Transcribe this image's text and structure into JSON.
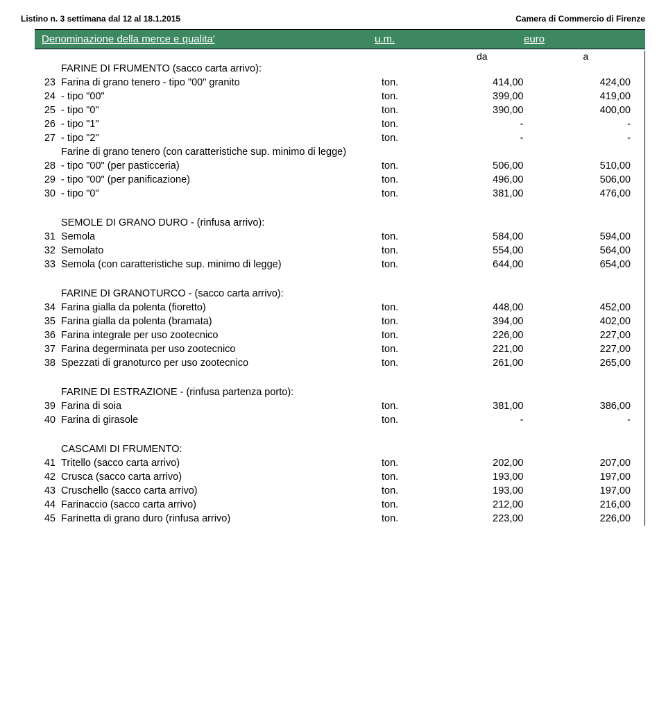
{
  "header": {
    "left": "Listino n. 3 settimana dal 12 al 18.1.2015",
    "right": "Camera di Commercio di Firenze"
  },
  "banner": {
    "desc": "Denominazione della merce e qualita'",
    "um": "u.m.",
    "euro": "euro"
  },
  "sub": {
    "da": "da",
    "a": "a"
  },
  "sections": [
    {
      "title": "FARINE DI FRUMENTO (sacco carta arrivo):",
      "rows": [
        {
          "n": "23",
          "d": "Farina di grano tenero - tipo \"00\" granito",
          "u": "ton.",
          "v1": "414,00",
          "v2": "424,00"
        },
        {
          "n": "24",
          "d": " - tipo \"00\"",
          "u": "ton.",
          "v1": "399,00",
          "v2": "419,00"
        },
        {
          "n": "25",
          "d": " - tipo \"0\"",
          "u": "ton.",
          "v1": "390,00",
          "v2": "400,00"
        },
        {
          "n": "26",
          "d": " - tipo \"1\"",
          "u": "ton.",
          "v1": "-",
          "v2": "-"
        },
        {
          "n": "27",
          "d": " - tipo \"2\"",
          "u": "ton.",
          "v1": "-",
          "v2": "-"
        }
      ],
      "subtitle": "Farine di grano tenero (con caratteristiche sup. minimo di legge)",
      "rows2": [
        {
          "n": "28",
          "d": " - tipo \"00\" (per pasticceria)",
          "u": "ton.",
          "v1": "506,00",
          "v2": "510,00"
        },
        {
          "n": "29",
          "d": " - tipo \"00\" (per panificazione)",
          "u": "ton.",
          "v1": "496,00",
          "v2": "506,00"
        },
        {
          "n": "30",
          "d": " - tipo \"0\"",
          "u": "ton.",
          "v1": "381,00",
          "v2": "476,00"
        }
      ]
    },
    {
      "title": "SEMOLE DI GRANO DURO - (rinfusa arrivo):",
      "rows": [
        {
          "n": "31",
          "d": "Semola",
          "u": "ton.",
          "v1": "584,00",
          "v2": "594,00"
        },
        {
          "n": "32",
          "d": "Semolato",
          "u": "ton.",
          "v1": "554,00",
          "v2": "564,00"
        },
        {
          "n": "33",
          "d": "Semola (con caratteristiche sup. minimo di legge)",
          "u": "ton.",
          "v1": "644,00",
          "v2": "654,00"
        }
      ]
    },
    {
      "title": "FARINE DI GRANOTURCO - (sacco carta arrivo):",
      "rows": [
        {
          "n": "34",
          "d": "Farina gialla da polenta (fioretto)",
          "u": "ton.",
          "v1": "448,00",
          "v2": "452,00"
        },
        {
          "n": "35",
          "d": "Farina gialla da polenta (bramata)",
          "u": "ton.",
          "v1": "394,00",
          "v2": "402,00"
        },
        {
          "n": "36",
          "d": "Farina integrale per uso zootecnico",
          "u": "ton.",
          "v1": "226,00",
          "v2": "227,00"
        },
        {
          "n": "37",
          "d": "Farina degerminata per uso zootecnico",
          "u": "ton.",
          "v1": "221,00",
          "v2": "227,00"
        },
        {
          "n": "38",
          "d": "Spezzati di granoturco per uso zootecnico",
          "u": "ton.",
          "v1": "261,00",
          "v2": "265,00"
        }
      ]
    },
    {
      "title": "FARINE DI ESTRAZIONE - (rinfusa partenza porto):",
      "rows": [
        {
          "n": "39",
          "d": "Farina di soia",
          "u": "ton.",
          "v1": "381,00",
          "v2": "386,00"
        },
        {
          "n": "40",
          "d": "Farina di girasole",
          "u": "ton.",
          "v1": "-",
          "v2": "-"
        }
      ]
    },
    {
      "title": "CASCAMI DI FRUMENTO:",
      "rows": [
        {
          "n": "41",
          "d": "Tritello (sacco carta arrivo)",
          "u": "ton.",
          "v1": "202,00",
          "v2": "207,00"
        },
        {
          "n": "42",
          "d": "Crusca (sacco carta arrivo)",
          "u": "ton.",
          "v1": "193,00",
          "v2": "197,00"
        },
        {
          "n": "43",
          "d": "Cruschello (sacco carta arrivo)",
          "u": "ton.",
          "v1": "193,00",
          "v2": "197,00"
        },
        {
          "n": "44",
          "d": "Farinaccio (sacco carta arrivo)",
          "u": "ton.",
          "v1": "212,00",
          "v2": "216,00"
        },
        {
          "n": "45",
          "d": "Farinetta di grano duro (rinfusa arrivo)",
          "u": "ton.",
          "v1": "223,00",
          "v2": "226,00"
        }
      ]
    }
  ]
}
